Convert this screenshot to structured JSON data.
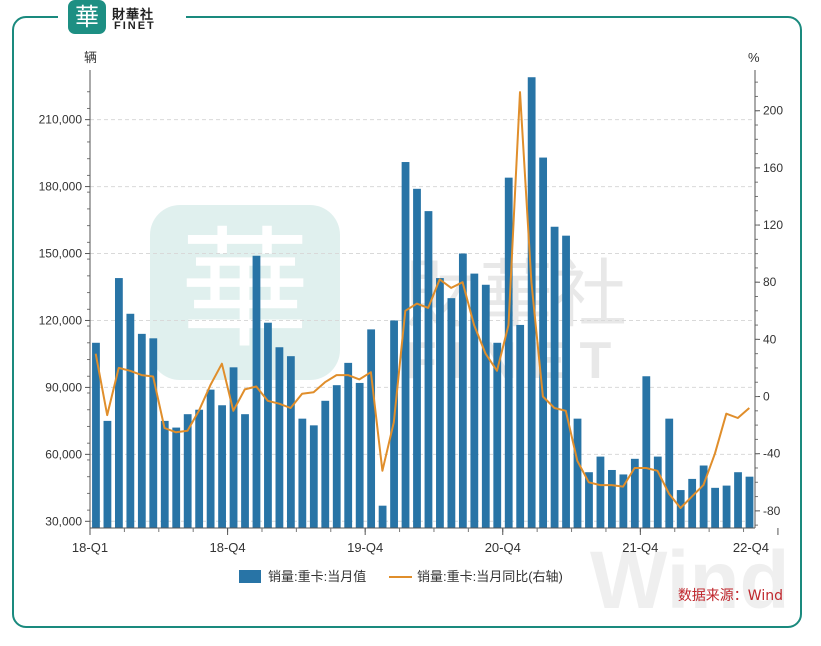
{
  "brand": {
    "mark": "華",
    "name_cn": "財華社",
    "name_en": "FINET"
  },
  "watermark": {
    "mark": "華",
    "name_cn": "財華社",
    "name_en": "FINET",
    "wind": "Wind"
  },
  "source_text": "数据来源：Wind",
  "colors": {
    "bar": "#2874a6",
    "line": "#e08e2b",
    "frame": "#1a8a7e",
    "source": "#c0272d"
  },
  "chart_data": {
    "type": "bar",
    "title": "",
    "y_left_unit": "辆",
    "y_right_unit": "%",
    "y_left_lim": [
      27000,
      230000
    ],
    "y_right_lim": [
      -92,
      225
    ],
    "y_left_ticks": [
      "30,000",
      "60,000",
      "90,000",
      "120,000",
      "150,000",
      "180,000",
      "210,000"
    ],
    "y_right_ticks": [
      "-80",
      "-40",
      "0",
      "40",
      "80",
      "120",
      "160",
      "200"
    ],
    "x_tick_labels": [
      "18-Q1",
      "18-Q4",
      "19-Q4",
      "20-Q4",
      "21-Q4",
      "22-Q4"
    ],
    "x_tick_index": [
      0,
      12,
      24,
      36,
      48,
      60
    ],
    "grid": true,
    "legend_position": "bottom",
    "series": [
      {
        "name": "销量:重卡:当月值",
        "type": "bar",
        "axis": "left",
        "values": [
          110000,
          75000,
          139000,
          123000,
          114000,
          112000,
          75000,
          72000,
          78000,
          80000,
          89000,
          82000,
          99000,
          78000,
          149000,
          119000,
          108000,
          104000,
          76000,
          73000,
          84000,
          91000,
          101000,
          92000,
          116000,
          37000,
          120000,
          191000,
          179000,
          169000,
          139000,
          130000,
          150000,
          141000,
          136000,
          110000,
          184000,
          118000,
          229000,
          193000,
          162000,
          158000,
          76000,
          52000,
          59000,
          53000,
          51000,
          58000,
          95000,
          59000,
          76000,
          44000,
          49000,
          55000,
          45000,
          46000,
          52000,
          50000
        ]
      },
      {
        "name": "销量:重卡:当月同比(右轴)",
        "type": "line",
        "axis": "right",
        "values": [
          30,
          -13,
          20,
          18,
          15,
          14,
          -22,
          -25,
          -24,
          -10,
          8,
          23,
          -10,
          5,
          7,
          -3,
          -5,
          -8,
          2,
          3,
          10,
          15,
          15,
          12,
          17,
          -52,
          -18,
          60,
          65,
          62,
          82,
          76,
          80,
          50,
          30,
          18,
          50,
          213,
          80,
          0,
          -8,
          -10,
          -45,
          -60,
          -62,
          -62,
          -63,
          -50,
          -50,
          -52,
          -68,
          -78,
          -70,
          -62,
          -40,
          -12,
          -15,
          -8
        ]
      }
    ]
  }
}
